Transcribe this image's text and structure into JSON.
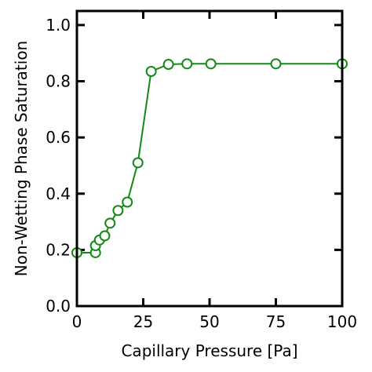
{
  "chart_data": {
    "type": "line",
    "title": "",
    "xlabel": "Capillary Pressure [Pa]",
    "ylabel": "Non-Wetting Phase Saturation",
    "xlim": [
      0,
      100
    ],
    "ylim": [
      0.0,
      1.05
    ],
    "xticks": [
      0,
      25,
      50,
      75,
      100
    ],
    "xtick_labels": [
      "0",
      "25",
      "50",
      "75",
      "100"
    ],
    "yticks": [
      0.0,
      0.2,
      0.4,
      0.6,
      0.8,
      1.0
    ],
    "ytick_labels": [
      "0.0",
      "0.2",
      "0.4",
      "0.6",
      "0.8",
      "1.0"
    ],
    "grid": false,
    "series": [
      {
        "color": "#138a13",
        "marker": "open-circle",
        "x": [
          0,
          7,
          7,
          8.5,
          10.5,
          12.5,
          15.5,
          19,
          23,
          28,
          34.5,
          41.5,
          50.5,
          75,
          100
        ],
        "y": [
          0.19,
          0.19,
          0.215,
          0.235,
          0.25,
          0.295,
          0.34,
          0.37,
          0.51,
          0.835,
          0.86,
          0.862,
          0.862,
          0.862,
          0.862
        ]
      }
    ]
  }
}
